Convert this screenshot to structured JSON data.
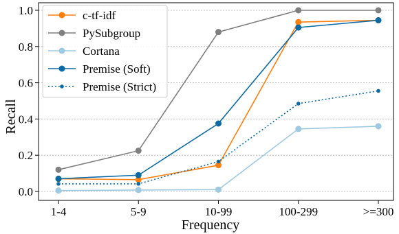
{
  "chart_data": {
    "type": "line",
    "categories": [
      "1-4",
      "5-9",
      "10-99",
      "100-299",
      ">=300"
    ],
    "xlabel": "Frequency",
    "ylabel": "Recall",
    "ylim": [
      0,
      1.0
    ],
    "yticks": [
      "0.0",
      "0.2",
      "0.4",
      "0.6",
      "0.8",
      "1.0"
    ],
    "ytick_values": [
      0,
      0.2,
      0.4,
      0.6,
      0.8,
      1.0
    ],
    "grid": "horizontal dotted",
    "legend_position": "top-left",
    "series": [
      {
        "name": "c-tf-idf",
        "values": [
          0.07,
          0.065,
          0.145,
          0.935,
          0.945
        ],
        "color": "#ff7f0e",
        "style": "solid",
        "marker": "large"
      },
      {
        "name": "PySubgroup",
        "values": [
          0.12,
          0.225,
          0.88,
          1.0,
          1.0
        ],
        "color": "#7f7f7f",
        "style": "solid",
        "marker": "large"
      },
      {
        "name": "Cortana",
        "values": [
          0.005,
          0.008,
          0.01,
          0.345,
          0.36
        ],
        "color": "#9ecae1",
        "style": "solid",
        "marker": "large"
      },
      {
        "name": "Premise (Soft)",
        "values": [
          0.07,
          0.09,
          0.375,
          0.905,
          0.945
        ],
        "color": "#0b6aa4",
        "style": "solid",
        "marker": "large"
      },
      {
        "name": "Premise (Strict)",
        "values": [
          0.042,
          0.042,
          0.165,
          0.485,
          0.555
        ],
        "color": "#0b6aa4",
        "style": "dotted",
        "marker": "small"
      }
    ]
  }
}
